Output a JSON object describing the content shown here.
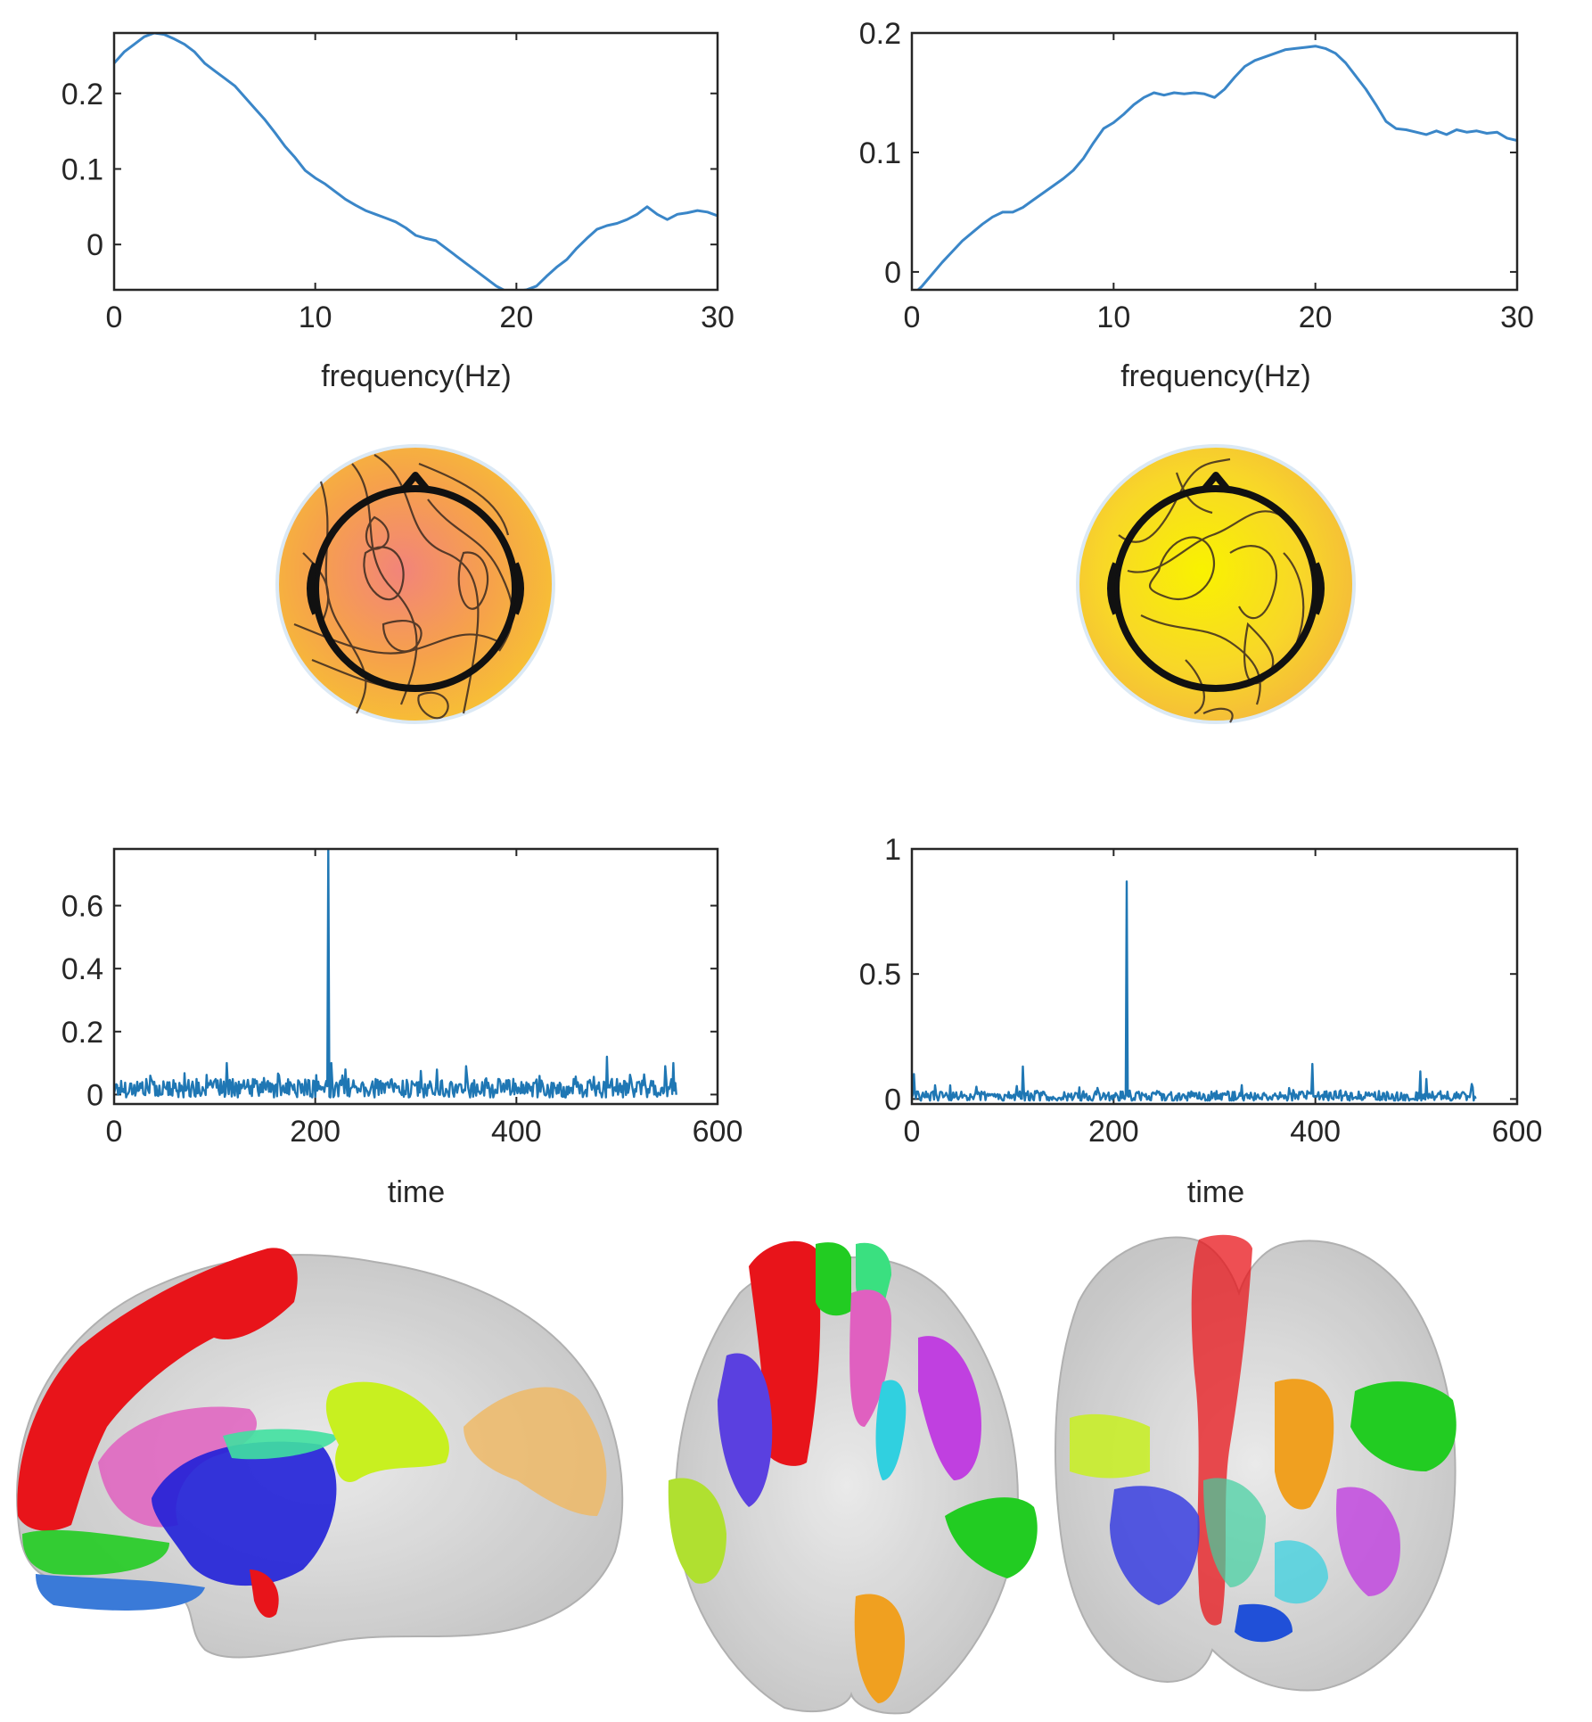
{
  "chart_data": [
    {
      "id": "spectrum-left",
      "type": "line",
      "xlabel": "frequency(Hz)",
      "ylabel": "",
      "xlim": [
        0,
        30
      ],
      "ylim": [
        -0.06,
        0.28
      ],
      "xticks": [
        0,
        10,
        20,
        30
      ],
      "yticks": [
        0,
        0.1,
        0.2
      ],
      "x": [
        0,
        0.5,
        1,
        1.5,
        2,
        2.5,
        3,
        3.5,
        4,
        4.5,
        5,
        5.5,
        6,
        6.5,
        7,
        7.5,
        8,
        8.5,
        9,
        9.5,
        10,
        10.5,
        11,
        11.5,
        12,
        12.5,
        13,
        13.5,
        14,
        14.5,
        15,
        15.5,
        16,
        16.5,
        17,
        17.5,
        18,
        18.5,
        19,
        19.5,
        20,
        20.5,
        21,
        21.5,
        22,
        22.5,
        23,
        23.5,
        24,
        24.5,
        25,
        25.5,
        26,
        26.5,
        27,
        27.5,
        28,
        28.5,
        29,
        29.5,
        30
      ],
      "values": [
        0.24,
        0.255,
        0.265,
        0.275,
        0.28,
        0.278,
        0.272,
        0.265,
        0.255,
        0.24,
        0.23,
        0.22,
        0.21,
        0.195,
        0.18,
        0.165,
        0.148,
        0.13,
        0.115,
        0.098,
        0.088,
        0.08,
        0.07,
        0.06,
        0.052,
        0.045,
        0.04,
        0.035,
        0.03,
        0.022,
        0.012,
        0.008,
        0.005,
        -0.005,
        -0.015,
        -0.025,
        -0.035,
        -0.045,
        -0.055,
        -0.062,
        -0.062,
        -0.06,
        -0.055,
        -0.042,
        -0.03,
        -0.02,
        -0.005,
        0.008,
        0.02,
        0.025,
        0.028,
        0.033,
        0.04,
        0.05,
        0.04,
        0.033,
        0.04,
        0.042,
        0.045,
        0.043,
        0.038
      ],
      "color": "#3a86c8"
    },
    {
      "id": "spectrum-right",
      "type": "line",
      "xlabel": "frequency(Hz)",
      "ylabel": "",
      "xlim": [
        0,
        30
      ],
      "ylim": [
        -0.015,
        0.2
      ],
      "xticks": [
        0,
        10,
        20,
        30
      ],
      "yticks": [
        0,
        0.1,
        0.2
      ],
      "x": [
        0,
        0.5,
        1,
        1.5,
        2,
        2.5,
        3,
        3.5,
        4,
        4.5,
        5,
        5.5,
        6,
        6.5,
        7,
        7.5,
        8,
        8.5,
        9,
        9.5,
        10,
        10.5,
        11,
        11.5,
        12,
        12.5,
        13,
        13.5,
        14,
        14.5,
        15,
        15.5,
        16,
        16.5,
        17,
        17.5,
        18,
        18.5,
        19,
        19.5,
        20,
        20.5,
        21,
        21.5,
        22,
        22.5,
        23,
        23.5,
        24,
        24.5,
        25,
        25.5,
        26,
        26.5,
        27,
        27.5,
        28,
        28.5,
        29,
        29.5,
        30
      ],
      "values": [
        -0.02,
        -0.012,
        -0.002,
        0.008,
        0.017,
        0.026,
        0.033,
        0.04,
        0.046,
        0.05,
        0.05,
        0.054,
        0.06,
        0.066,
        0.072,
        0.078,
        0.085,
        0.095,
        0.108,
        0.12,
        0.125,
        0.132,
        0.14,
        0.146,
        0.15,
        0.148,
        0.15,
        0.149,
        0.15,
        0.149,
        0.146,
        0.153,
        0.163,
        0.172,
        0.177,
        0.18,
        0.183,
        0.186,
        0.187,
        0.188,
        0.189,
        0.187,
        0.183,
        0.175,
        0.164,
        0.153,
        0.14,
        0.126,
        0.12,
        0.119,
        0.117,
        0.115,
        0.118,
        0.115,
        0.119,
        0.117,
        0.118,
        0.116,
        0.117,
        0.112,
        0.11
      ],
      "color": "#3a86c8"
    },
    {
      "id": "timecourse-left",
      "type": "line",
      "xlabel": "time",
      "ylabel": "",
      "xlim": [
        0,
        600
      ],
      "ylim": [
        -0.03,
        0.78
      ],
      "xticks": [
        0,
        200,
        400,
        600
      ],
      "yticks": [
        0,
        0.2,
        0.4,
        0.6
      ],
      "seed": 17,
      "n_points": 560,
      "baseline": 0.02,
      "noise": 0.03,
      "peaks": [
        [
          213,
          0.78
        ],
        [
          216,
          0.1
        ],
        [
          36,
          0.06
        ],
        [
          112,
          0.1
        ],
        [
          230,
          0.08
        ],
        [
          350,
          0.09
        ],
        [
          490,
          0.12
        ],
        [
          548,
          0.09
        ],
        [
          556,
          0.1
        ]
      ],
      "color": "#1f77b4"
    },
    {
      "id": "timecourse-right",
      "type": "line",
      "xlabel": "time",
      "ylabel": "",
      "xlim": [
        0,
        600
      ],
      "ylim": [
        -0.02,
        1.0
      ],
      "xticks": [
        0,
        200,
        400,
        600
      ],
      "yticks": [
        0,
        0.5,
        1
      ],
      "seed": 29,
      "n_points": 560,
      "baseline": 0.012,
      "noise": 0.02,
      "peaks": [
        [
          213,
          0.87
        ],
        [
          2,
          0.1
        ],
        [
          110,
          0.13
        ],
        [
          397,
          0.14
        ],
        [
          504,
          0.11
        ],
        [
          510,
          0.08
        ],
        [
          555,
          0.06
        ]
      ],
      "color": "#1f77b4"
    }
  ],
  "topomaps": [
    {
      "id": "topomap-left",
      "colors": [
        "#f2847a",
        "#f6a24a",
        "#f7c332"
      ]
    },
    {
      "id": "topomap-right",
      "colors": [
        "#f9f200",
        "#f8d728",
        "#f4b83c"
      ]
    }
  ],
  "brain_views": [
    {
      "id": "brain-sagittal-view",
      "label": "sagittal"
    },
    {
      "id": "brain-axial-view",
      "label": "axial"
    },
    {
      "id": "brain-coronal-view",
      "label": "coronal"
    }
  ]
}
